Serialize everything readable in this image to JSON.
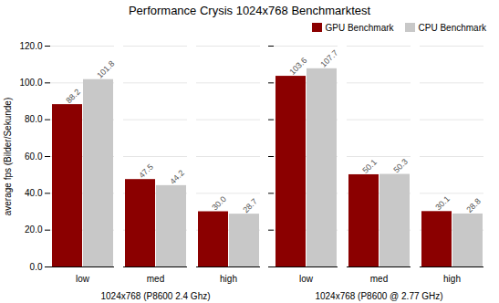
{
  "chart_data": [
    {
      "type": "bar",
      "title": "Performance Crysis 1024x768 Benchmarktest",
      "xlabel": "1024x768 (P8600 2.4 Ghz)",
      "ylabel": "average fps (Bilder/Sekunde)",
      "categories": [
        "low",
        "med",
        "high"
      ],
      "series": [
        {
          "name": "GPU Benchmark",
          "color": "#8B0000",
          "values": [
            88.2,
            47.5,
            30.0
          ],
          "value_labels": [
            "88.2",
            "47.5",
            "30.0"
          ]
        },
        {
          "name": "CPU Benchmark",
          "color": "#C8C8C8",
          "values": [
            101.8,
            44.2,
            28.7
          ],
          "value_labels": [
            "101.8",
            "44.2",
            "28.7"
          ]
        }
      ],
      "ylim": [
        0,
        120
      ],
      "yticks": [
        {
          "value": 0,
          "label": "0.0"
        },
        {
          "value": 20,
          "label": "20.0"
        },
        {
          "value": 40,
          "label": "40.0"
        },
        {
          "value": 60,
          "label": "60.0"
        },
        {
          "value": 80,
          "label": "80.0"
        },
        {
          "value": 100,
          "label": "100.0"
        },
        {
          "value": 120,
          "label": "120.0"
        }
      ],
      "grid": true,
      "data_labels": true
    },
    {
      "type": "bar",
      "xlabel": "1024x768 (P8600 @ 2.77 GHz)",
      "categories": [
        "low",
        "med",
        "high"
      ],
      "series": [
        {
          "name": "GPU Benchmark",
          "color": "#8B0000",
          "values": [
            103.6,
            50.1,
            30.1
          ],
          "value_labels": [
            "103.6",
            "50.1",
            "30.1"
          ]
        },
        {
          "name": "CPU Benchmark",
          "color": "#C8C8C8",
          "values": [
            107.7,
            50.3,
            28.8
          ],
          "value_labels": [
            "107.7",
            "50.3",
            "28.8"
          ]
        }
      ],
      "ylim": [
        0,
        120
      ],
      "yticks": [
        {
          "value": 0,
          "label": "0.0"
        },
        {
          "value": 20,
          "label": "20.0"
        },
        {
          "value": 40,
          "label": "40.0"
        },
        {
          "value": 60,
          "label": "60.0"
        },
        {
          "value": 80,
          "label": "80.0"
        },
        {
          "value": 100,
          "label": "100.0"
        },
        {
          "value": 120,
          "label": "120.0"
        }
      ],
      "grid": true,
      "data_labels": true,
      "tick_labels": "x",
      "legend": "upper right"
    }
  ]
}
